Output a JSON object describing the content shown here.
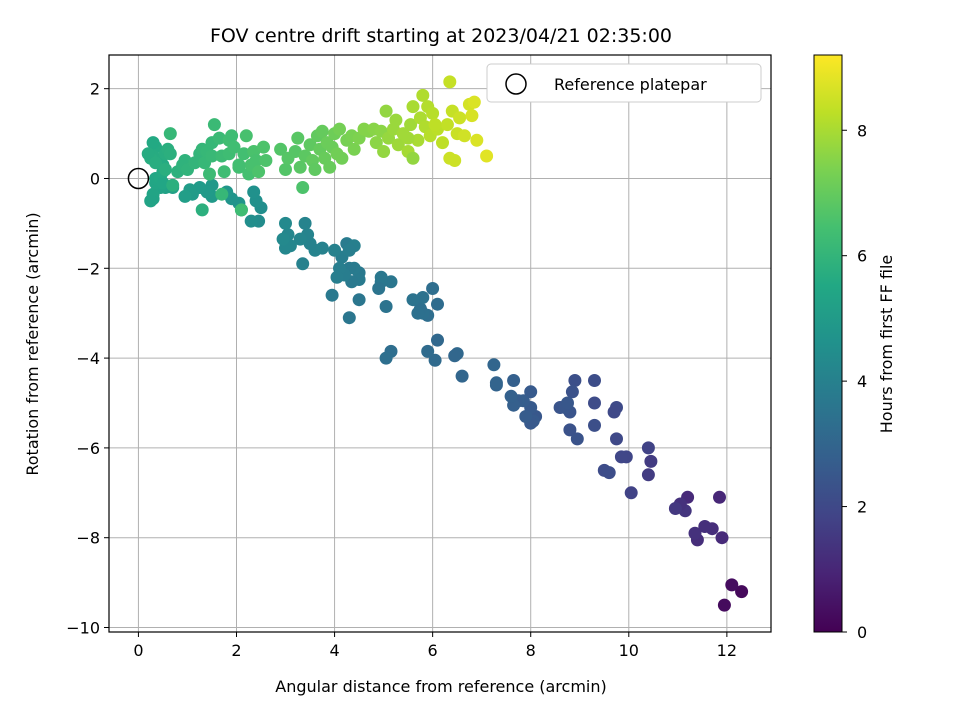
{
  "chart_data": {
    "type": "scatter",
    "title": "FOV centre drift starting at 2023/04/21 02:35:00",
    "xlabel": "Angular distance from reference (arcmin)",
    "ylabel": "Rotation from reference (arcmin)",
    "xlim": [
      -0.6,
      12.9
    ],
    "ylim": [
      -10.1,
      2.75
    ],
    "x_ticks": [
      0,
      2,
      4,
      6,
      8,
      10,
      12
    ],
    "y_ticks": [
      2,
      0,
      -2,
      -4,
      -6,
      -8,
      -10
    ],
    "grid": true,
    "legend": {
      "placement": "top-right",
      "entries": [
        "Reference platepar"
      ]
    },
    "reference_point": {
      "x": 0,
      "y": 0,
      "label": "Reference platepar"
    },
    "colorbar": {
      "label": "Hours from first FF file",
      "colormap": "viridis",
      "range": [
        0,
        9.2
      ],
      "ticks": [
        0,
        2,
        4,
        6,
        8
      ]
    },
    "points": [
      [
        12.3,
        -9.2,
        0.2
      ],
      [
        12.1,
        -9.05,
        0.3
      ],
      [
        11.95,
        -9.5,
        0.25
      ],
      [
        11.85,
        -7.1,
        1.0
      ],
      [
        11.9,
        -8.0,
        1.1
      ],
      [
        11.7,
        -7.8,
        1.2
      ],
      [
        11.55,
        -7.75,
        1.25
      ],
      [
        11.4,
        -8.05,
        1.2
      ],
      [
        11.35,
        -7.9,
        1.3
      ],
      [
        11.2,
        -7.1,
        1.1
      ],
      [
        11.15,
        -7.4,
        1.4
      ],
      [
        11.05,
        -7.25,
        1.3
      ],
      [
        10.95,
        -7.35,
        1.5
      ],
      [
        10.45,
        -6.3,
        1.6
      ],
      [
        10.4,
        -6.0,
        1.8
      ],
      [
        10.4,
        -6.6,
        1.6
      ],
      [
        10.05,
        -7.0,
        1.8
      ],
      [
        9.95,
        -6.2,
        1.9
      ],
      [
        9.85,
        -6.2,
        1.95
      ],
      [
        9.75,
        -5.8,
        2.0
      ],
      [
        9.75,
        -5.1,
        2.05
      ],
      [
        9.7,
        -5.2,
        2.0
      ],
      [
        9.5,
        -6.5,
        2.1
      ],
      [
        9.6,
        -6.55,
        2.15
      ],
      [
        9.3,
        -5.5,
        2.2
      ],
      [
        9.3,
        -5.0,
        2.1
      ],
      [
        9.3,
        -4.5,
        2.15
      ],
      [
        8.9,
        -4.5,
        2.2
      ],
      [
        8.85,
        -4.75,
        2.3
      ],
      [
        8.8,
        -5.6,
        2.3
      ],
      [
        8.95,
        -5.8,
        2.35
      ],
      [
        8.8,
        -5.2,
        2.4
      ],
      [
        8.6,
        -5.1,
        2.4
      ],
      [
        8.7,
        -5.1,
        2.45
      ],
      [
        8.75,
        -5.0,
        2.5
      ],
      [
        8.1,
        -5.3,
        2.5
      ],
      [
        8.05,
        -5.4,
        2.6
      ],
      [
        8.0,
        -5.45,
        2.55
      ],
      [
        8.0,
        -4.75,
        2.6
      ],
      [
        8.0,
        -5.1,
        2.6
      ],
      [
        7.9,
        -5.3,
        2.65
      ],
      [
        7.85,
        -4.95,
        2.7
      ],
      [
        7.75,
        -4.95,
        2.75
      ],
      [
        7.7,
        -4.95,
        2.7
      ],
      [
        7.65,
        -5.05,
        2.8
      ],
      [
        7.6,
        -4.85,
        2.85
      ],
      [
        7.65,
        -4.5,
        2.8
      ],
      [
        7.3,
        -4.6,
        2.9
      ],
      [
        7.3,
        -4.55,
        2.95
      ],
      [
        7.25,
        -4.15,
        3.0
      ],
      [
        6.6,
        -4.4,
        3.0
      ],
      [
        6.5,
        -3.9,
        3.1
      ],
      [
        6.45,
        -3.95,
        3.05
      ],
      [
        6.1,
        -3.6,
        3.1
      ],
      [
        6.05,
        -4.05,
        3.15
      ],
      [
        5.9,
        -3.85,
        3.2
      ],
      [
        6.1,
        -2.8,
        3.25
      ],
      [
        6.0,
        -2.45,
        3.3
      ],
      [
        5.9,
        -3.05,
        3.3
      ],
      [
        5.8,
        -3.0,
        3.4
      ],
      [
        5.75,
        -2.9,
        3.35
      ],
      [
        5.7,
        -3.0,
        3.4
      ],
      [
        5.8,
        -2.65,
        3.45
      ],
      [
        5.6,
        -2.7,
        3.5
      ],
      [
        5.15,
        -3.85,
        3.3
      ],
      [
        5.05,
        -4.0,
        3.35
      ],
      [
        5.05,
        -2.85,
        3.5
      ],
      [
        5.15,
        -2.3,
        3.6
      ],
      [
        4.95,
        -2.3,
        3.6
      ],
      [
        4.95,
        -2.2,
        3.65
      ],
      [
        4.9,
        -2.45,
        3.55
      ],
      [
        4.5,
        -2.1,
        3.7
      ],
      [
        4.5,
        -2.7,
        3.6
      ],
      [
        4.5,
        -2.25,
        3.75
      ],
      [
        4.4,
        -2.0,
        3.8
      ],
      [
        4.3,
        -3.1,
        3.6
      ],
      [
        4.35,
        -2.3,
        3.7
      ],
      [
        4.3,
        -2.0,
        3.75
      ],
      [
        4.25,
        -1.45,
        3.8
      ],
      [
        4.2,
        -2.15,
        3.85
      ],
      [
        4.15,
        -1.75,
        3.85
      ],
      [
        4.1,
        -2.0,
        3.9
      ],
      [
        4.05,
        -2.2,
        3.9
      ],
      [
        4.4,
        -1.5,
        3.95
      ],
      [
        4.3,
        -1.6,
        3.9
      ],
      [
        4.0,
        -1.6,
        4.0
      ],
      [
        3.95,
        -2.6,
        3.7
      ],
      [
        3.75,
        -1.55,
        4.0
      ],
      [
        3.6,
        -1.6,
        4.1
      ],
      [
        3.5,
        -1.45,
        4.05
      ],
      [
        3.45,
        -1.25,
        4.1
      ],
      [
        3.4,
        -1.0,
        4.1
      ],
      [
        3.3,
        -1.35,
        4.15
      ],
      [
        3.35,
        -1.9,
        4.0
      ],
      [
        3.1,
        -1.5,
        4.2
      ],
      [
        3.05,
        -1.25,
        4.2
      ],
      [
        3.0,
        -1.0,
        4.3
      ],
      [
        3.0,
        -1.55,
        4.25
      ],
      [
        2.95,
        -1.35,
        4.3
      ],
      [
        2.5,
        -0.65,
        4.5
      ],
      [
        2.45,
        -0.95,
        4.4
      ],
      [
        2.4,
        -0.5,
        4.55
      ],
      [
        2.35,
        -0.3,
        4.6
      ],
      [
        2.3,
        -0.95,
        4.5
      ],
      [
        2.1,
        -0.7,
        4.6
      ],
      [
        2.05,
        -0.55,
        4.7
      ],
      [
        1.9,
        -0.45,
        4.7
      ],
      [
        1.8,
        -0.3,
        4.8
      ],
      [
        1.5,
        -0.15,
        4.9
      ],
      [
        1.5,
        -0.4,
        4.9
      ],
      [
        1.4,
        -0.3,
        4.95
      ],
      [
        1.25,
        -0.2,
        5.0
      ],
      [
        1.1,
        -0.35,
        5.0
      ],
      [
        1.05,
        -0.25,
        5.05
      ],
      [
        0.95,
        -0.4,
        5.1
      ],
      [
        0.7,
        -0.2,
        5.2
      ],
      [
        0.55,
        -0.2,
        5.25
      ],
      [
        0.45,
        -0.2,
        5.3
      ],
      [
        0.3,
        -0.45,
        5.3
      ],
      [
        0.3,
        -0.35,
        5.35
      ],
      [
        0.25,
        -0.5,
        5.3
      ],
      [
        0.35,
        -0.1,
        5.4
      ],
      [
        0.35,
        0.0,
        5.45
      ],
      [
        0.45,
        0.0,
        5.5
      ],
      [
        0.5,
        -0.1,
        5.45
      ],
      [
        0.5,
        0.15,
        5.55
      ],
      [
        0.5,
        0.3,
        5.6
      ],
      [
        0.45,
        0.4,
        5.6
      ],
      [
        0.35,
        0.7,
        5.6
      ],
      [
        0.3,
        0.8,
        5.55
      ],
      [
        0.3,
        0.5,
        5.65
      ],
      [
        0.25,
        0.45,
        5.7
      ],
      [
        0.2,
        0.55,
        5.65
      ],
      [
        0.35,
        0.35,
        5.7
      ],
      [
        0.55,
        0.2,
        5.75
      ],
      [
        0.55,
        0.55,
        5.7
      ],
      [
        0.6,
        0.65,
        5.75
      ],
      [
        0.65,
        0.55,
        5.8
      ],
      [
        0.7,
        -0.15,
        5.8
      ],
      [
        0.8,
        0.15,
        5.85
      ],
      [
        0.9,
        0.3,
        5.9
      ],
      [
        0.95,
        0.4,
        5.9
      ],
      [
        1.0,
        0.2,
        5.95
      ],
      [
        1.15,
        0.35,
        6.0
      ],
      [
        1.25,
        0.55,
        6.0
      ],
      [
        1.3,
        -0.7,
        5.8
      ],
      [
        1.3,
        0.65,
        6.05
      ],
      [
        1.35,
        0.35,
        6.1
      ],
      [
        1.4,
        0.6,
        6.1
      ],
      [
        1.5,
        0.5,
        6.15
      ],
      [
        1.5,
        0.8,
        6.1
      ],
      [
        1.55,
        1.2,
        6.2
      ],
      [
        1.65,
        0.9,
        6.2
      ],
      [
        1.7,
        0.5,
        6.25
      ],
      [
        1.75,
        0.15,
        6.3
      ],
      [
        1.85,
        0.55,
        6.3
      ],
      [
        1.85,
        0.85,
        6.35
      ],
      [
        1.9,
        0.95,
        6.3
      ],
      [
        1.95,
        0.7,
        6.35
      ],
      [
        2.05,
        0.25,
        6.4
      ],
      [
        2.1,
        -0.7,
        6.3
      ],
      [
        2.15,
        0.55,
        6.4
      ],
      [
        2.2,
        0.95,
        6.5
      ],
      [
        2.25,
        0.1,
        6.45
      ],
      [
        2.3,
        0.3,
        6.5
      ],
      [
        2.35,
        0.6,
        6.55
      ],
      [
        2.4,
        0.4,
        6.5
      ],
      [
        2.45,
        0.15,
        6.6
      ],
      [
        2.55,
        0.7,
        6.6
      ],
      [
        2.6,
        0.4,
        6.6
      ],
      [
        0.65,
        1.0,
        6.1
      ],
      [
        1.45,
        0.1,
        6.25
      ],
      [
        1.7,
        -0.35,
        6.1
      ],
      [
        2.05,
        0.3,
        6.4
      ],
      [
        2.9,
        0.65,
        6.7
      ],
      [
        3.0,
        0.2,
        6.7
      ],
      [
        3.05,
        0.45,
        6.75
      ],
      [
        3.2,
        0.6,
        6.75
      ],
      [
        3.25,
        0.9,
        6.8
      ],
      [
        3.3,
        0.25,
        6.8
      ],
      [
        3.35,
        -0.2,
        6.6
      ],
      [
        3.4,
        0.5,
        6.85
      ],
      [
        3.5,
        0.75,
        6.9
      ],
      [
        3.55,
        0.4,
        6.95
      ],
      [
        3.6,
        0.2,
        6.9
      ],
      [
        3.65,
        0.95,
        6.95
      ],
      [
        3.7,
        0.65,
        7.0
      ],
      [
        3.75,
        1.05,
        7.0
      ],
      [
        3.8,
        0.45,
        7.05
      ],
      [
        3.85,
        0.8,
        7.1
      ],
      [
        3.9,
        0.25,
        7.05
      ],
      [
        3.95,
        0.7,
        7.1
      ],
      [
        4.0,
        1.0,
        7.15
      ],
      [
        4.05,
        0.55,
        7.2
      ],
      [
        4.1,
        1.1,
        7.25
      ],
      [
        4.15,
        0.45,
        7.2
      ],
      [
        4.25,
        0.85,
        7.3
      ],
      [
        4.35,
        0.95,
        7.35
      ],
      [
        4.4,
        0.65,
        7.35
      ],
      [
        4.5,
        0.9,
        7.4
      ],
      [
        4.6,
        1.1,
        7.5
      ],
      [
        4.7,
        1.05,
        7.5
      ],
      [
        4.8,
        1.1,
        7.55
      ],
      [
        4.85,
        0.8,
        7.6
      ],
      [
        4.95,
        1.05,
        7.6
      ],
      [
        5.0,
        0.6,
        7.7
      ],
      [
        5.05,
        1.5,
        7.7
      ],
      [
        5.1,
        0.9,
        7.75
      ],
      [
        5.2,
        1.1,
        7.8
      ],
      [
        5.25,
        1.3,
        7.8
      ],
      [
        5.3,
        0.75,
        7.85
      ],
      [
        5.4,
        1.0,
        7.9
      ],
      [
        5.5,
        0.6,
        7.95
      ],
      [
        5.55,
        1.2,
        7.9
      ],
      [
        5.6,
        1.6,
        8.0
      ],
      [
        5.7,
        0.85,
        8.0
      ],
      [
        5.75,
        1.35,
        8.05
      ],
      [
        5.8,
        1.85,
        8.1
      ],
      [
        5.85,
        1.15,
        8.1
      ],
      [
        5.9,
        1.6,
        8.15
      ],
      [
        5.95,
        0.95,
        8.2
      ],
      [
        6.0,
        1.45,
        8.2
      ],
      [
        6.1,
        1.1,
        8.25
      ],
      [
        6.2,
        0.8,
        8.3
      ],
      [
        6.3,
        1.2,
        8.35
      ],
      [
        6.35,
        2.15,
        8.4
      ],
      [
        6.4,
        1.5,
        8.4
      ],
      [
        6.5,
        1.0,
        8.45
      ],
      [
        6.55,
        1.35,
        8.5
      ],
      [
        6.65,
        0.95,
        8.55
      ],
      [
        6.75,
        1.65,
        8.6
      ],
      [
        6.8,
        1.4,
        8.65
      ],
      [
        6.9,
        0.85,
        8.7
      ],
      [
        7.1,
        0.5,
        8.8
      ],
      [
        6.85,
        1.7,
        8.7
      ],
      [
        6.45,
        0.4,
        8.5
      ],
      [
        6.35,
        0.45,
        8.5
      ],
      [
        5.5,
        0.9,
        7.9
      ],
      [
        5.6,
        0.45,
        7.7
      ],
      [
        6.05,
        1.2,
        8.3
      ]
    ]
  }
}
